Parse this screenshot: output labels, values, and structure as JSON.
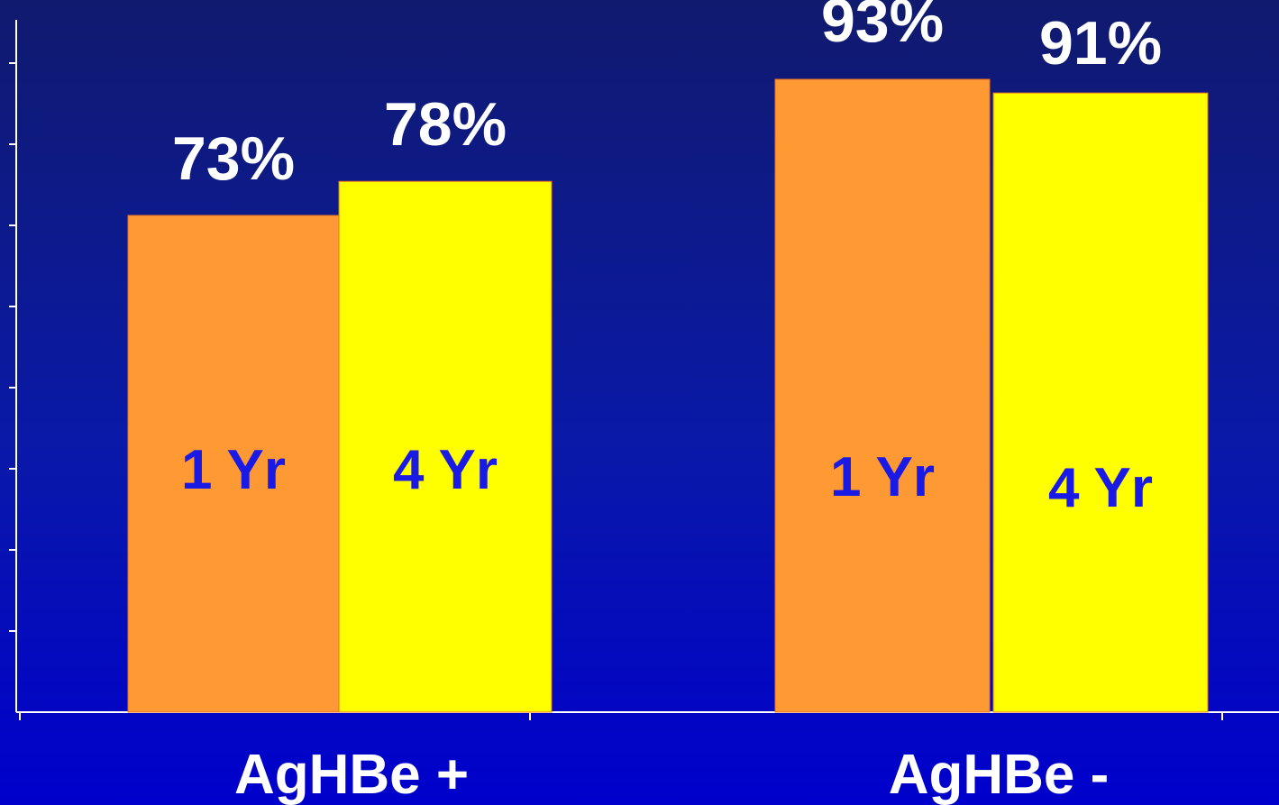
{
  "chart_data": {
    "type": "bar",
    "title": "",
    "xlabel": "",
    "ylabel": "",
    "ylim": [
      0,
      100
    ],
    "grid": false,
    "legend": "none",
    "categories": [
      "AgHBe +",
      "AgHBe -"
    ],
    "series": [
      {
        "bar_label": "1 Yr",
        "color": "#ff9933",
        "values": [
          73,
          93
        ],
        "value_labels": [
          "73%",
          "93%"
        ],
        "bar_labels": [
          "1 Yr",
          "1 Yr"
        ]
      },
      {
        "bar_label": "4 Yr",
        "color": "#ffff00",
        "values": [
          78,
          91
        ],
        "value_labels": [
          "78%",
          "91%"
        ],
        "bar_labels": [
          "4 Yr",
          "4 Yr"
        ]
      }
    ]
  }
}
